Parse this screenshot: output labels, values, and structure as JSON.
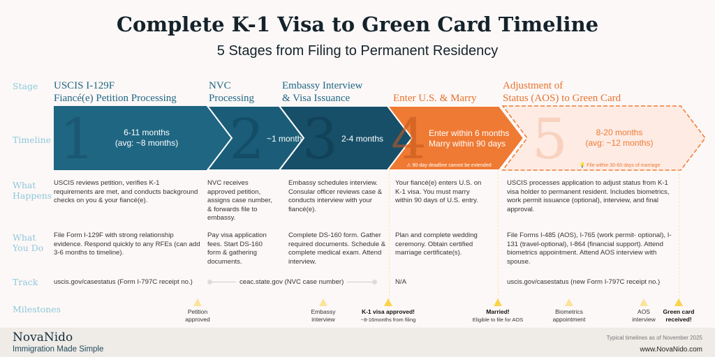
{
  "title": "Complete K-1 Visa to Green Card Timeline",
  "subtitle": "5 Stages from Filing to Permanent Residency",
  "row_labels": {
    "stage": "Stage",
    "timeline": "Timeline",
    "what_happens": "What Happens",
    "what_you_do": "What You Do",
    "track": "Track",
    "milestones": "Milestones"
  },
  "colors": {
    "stage1": "#1f6683",
    "stage2": "#1b5d78",
    "stage3": "#174f69",
    "stage4": "#ef7a33",
    "stage5_fill": "#fdebe4",
    "stage5_border": "#ef7a33",
    "label": "#8fc8dc",
    "milestone": "#fbd34d"
  },
  "stages": [
    {
      "number": "1",
      "title_line1": "USCIS I-129F",
      "title_line2": "Fiancé(e) Petition Processing",
      "timeline_line1": "6-11 months",
      "timeline_line2": "(avg: ~8 months)",
      "what_happens": "USCIS reviews petition, verifies K-1 requirements are met, and conducts background checks on you & your fiancé(e).",
      "what_you_do": "File Form I-129F with strong relationship evidence. Respond quickly to any RFEs (can add 3-6 months to timeline).",
      "track": "uscis.gov/casestatus (Form I-797C receipt no.)"
    },
    {
      "number": "2",
      "title_line1": "NVC",
      "title_line2": "Processing",
      "timeline_line1": "~1 month",
      "what_happens": "NVC receives approved petition, assigns case number, & forwards file to embassy.",
      "what_you_do": "Pay visa application fees. Start DS-160 form &  gathering documents.",
      "track": "ceac.state.gov (NVC case number)"
    },
    {
      "number": "3",
      "title_line1": "Embassy Interview",
      "title_line2": "& Visa Issuance",
      "timeline_line1": "2-4  months",
      "what_happens": "Embassy schedules interview. Consular officer reviews case & conducts interview with your fiancé(e).",
      "what_you_do": "Complete DS-160 form. Gather required documents. Schedule & complete medical exam. Attend interview."
    },
    {
      "number": "4",
      "title_line1": "Enter U.S. & Marry",
      "timeline_line1": "Enter within 6 months",
      "timeline_line2": "Marry within 90 days",
      "note": "⚠ 90-day deadline cannot be extended",
      "what_happens": "Your fiancé(e) enters U.S. on K-1 visa. You must marry within 90 days of U.S. entry.",
      "what_you_do": "Plan and complete wedding ceremony. Obtain certified marriage certificate(s).",
      "track": "N/A"
    },
    {
      "number": "5",
      "title_line1": "Adjustment of",
      "title_line2": "Status (AOS) to Green Card",
      "timeline_line1": "8-20 months",
      "timeline_line2": "(avg: ~12 months)",
      "note": "💡 File within 30-60 days of marriage",
      "what_happens": "USCIS processes application to adjust status from K-1 visa holder to permanent resident. Includes biometrics, work permit issuance (optional), interview, and final approval.",
      "what_you_do": "File Forms I-485 (AOS), I-765 (work permit- optional), I-131 (travel-optional), I-864 (financial support). Attend biometrics appointment. Attend AOS interview with spouse.",
      "track": "uscis.gov/casestatus (new Form I-797C receipt no.)"
    }
  ],
  "milestones": [
    {
      "label_line1": "Petition",
      "label_line2": "approved"
    },
    {
      "label_line1": "Embassy",
      "label_line2": "interview"
    },
    {
      "label_line1": "K-1 visa approved!",
      "label_line2": "~8-16months from filing",
      "major": true
    },
    {
      "label_line1": "Married!",
      "label_line2": "Eligible to file for AOS",
      "major": true
    },
    {
      "label_line1": "Biometrics",
      "label_line2": "appointment"
    },
    {
      "label_line1": "AOS",
      "label_line2": "interview"
    },
    {
      "label_line1": "Green card",
      "label_line2": "received!",
      "major": true
    }
  ],
  "footer": {
    "brand": "NovaNido",
    "tagline": "Immigration Made Simple",
    "note": "Typical timelines as of November 2025",
    "website": "www.NovaNido.com"
  }
}
